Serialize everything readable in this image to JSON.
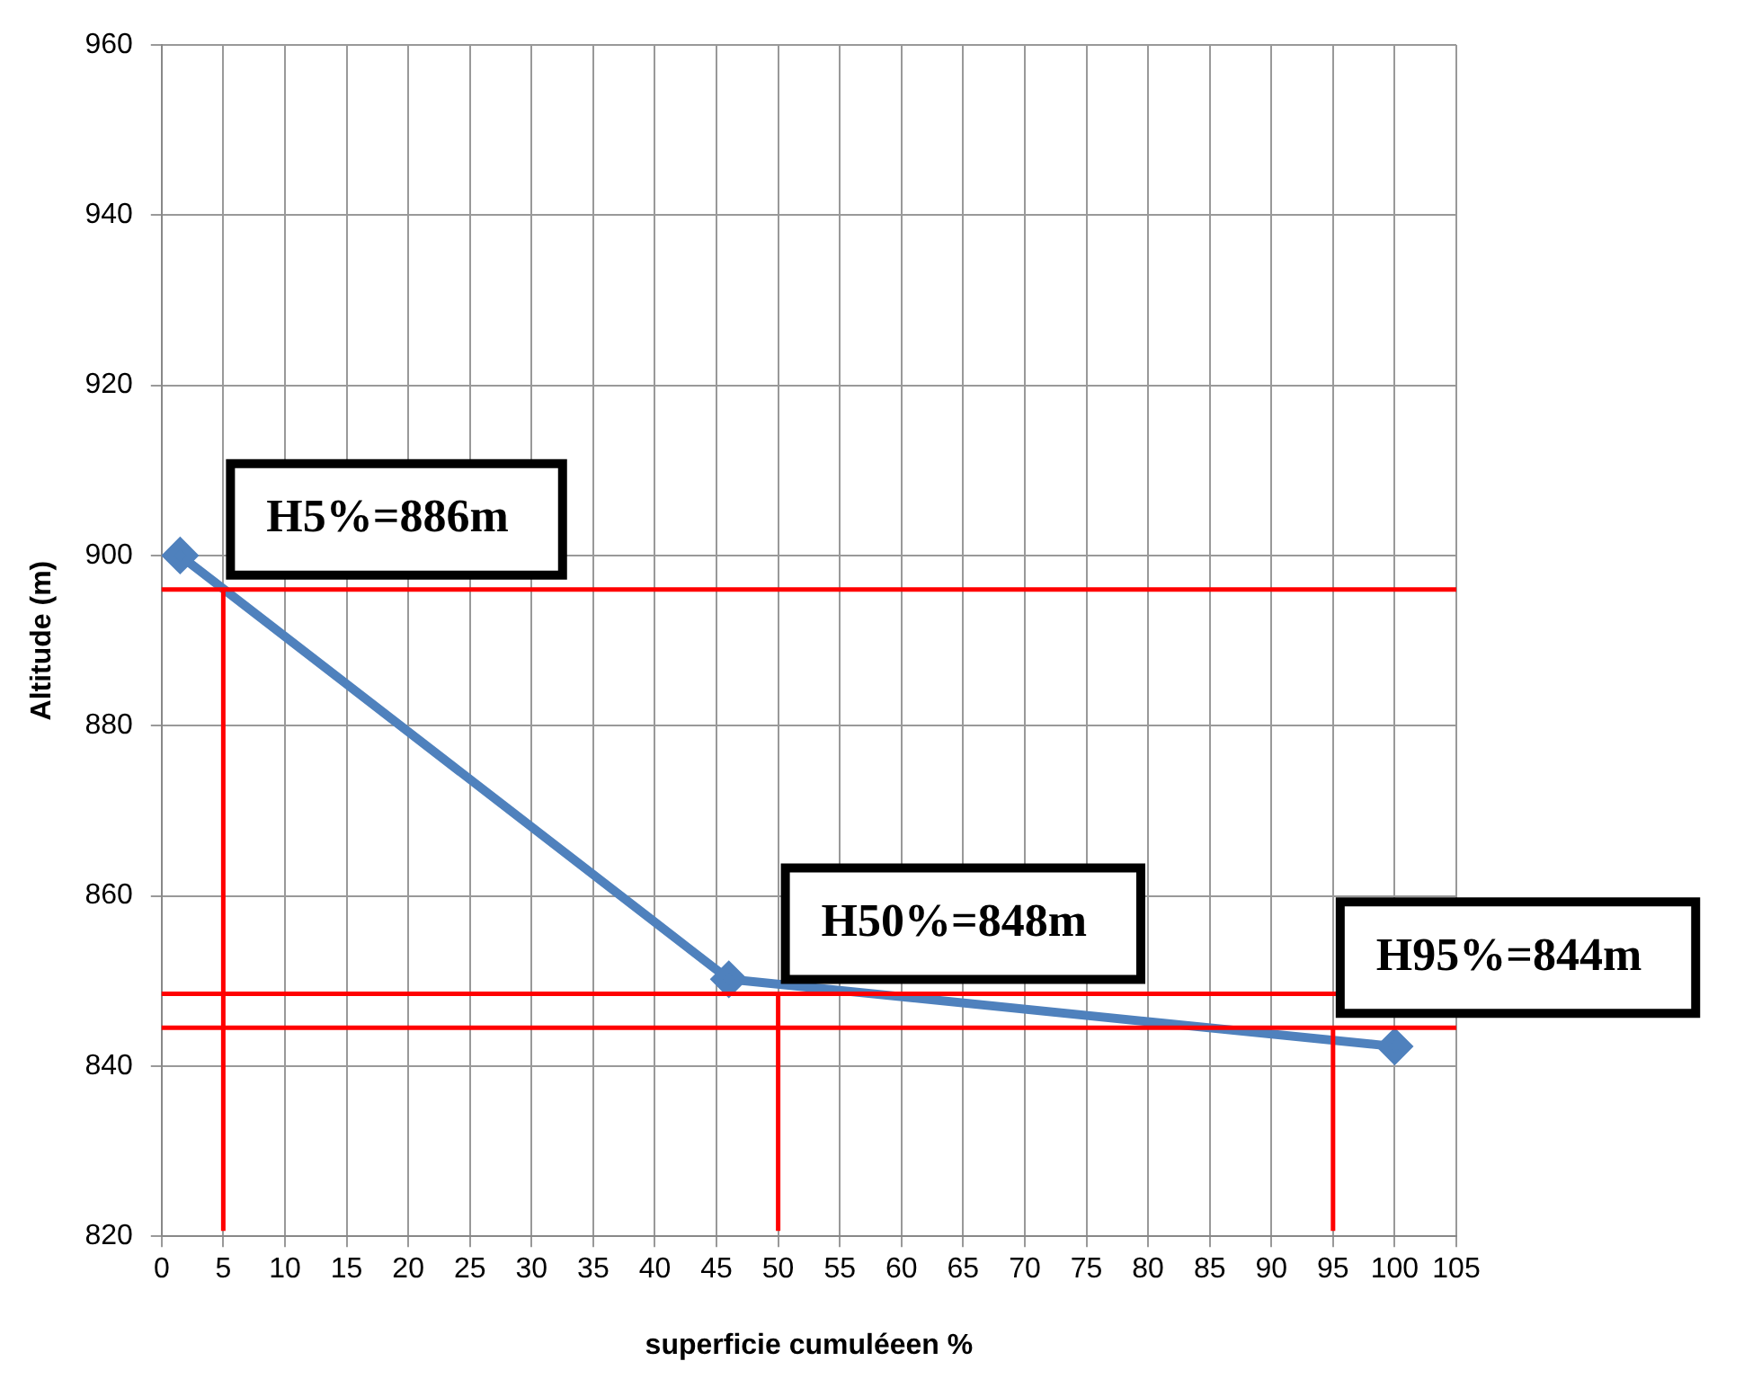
{
  "chart_data": {
    "type": "line",
    "xlabel": "superficie cumuléeen %",
    "ylabel": "Altitude (m)",
    "x": [
      1.5,
      46,
      100
    ],
    "series": [
      {
        "color": "#4f81bd",
        "values": [
          900,
          850.2,
          842.3
        ]
      }
    ],
    "xlim": [
      0,
      105
    ],
    "xticks": [
      0,
      5,
      10,
      15,
      20,
      25,
      30,
      35,
      40,
      45,
      50,
      55,
      60,
      65,
      70,
      75,
      80,
      85,
      90,
      95,
      100,
      105
    ],
    "ylim": [
      820,
      960
    ],
    "yticks": [
      820,
      840,
      860,
      880,
      900,
      920,
      940,
      960
    ],
    "grid": true,
    "marker": "diamond",
    "line_style": "solid",
    "legend": false,
    "ref_lines": [
      {
        "axis": "x",
        "value": 5,
        "color": "#ff0000"
      },
      {
        "axis": "x",
        "value": 50,
        "color": "#ff0000"
      },
      {
        "axis": "x",
        "value": 95,
        "color": "#ff0000"
      },
      {
        "axis": "y",
        "value": 896,
        "color": "#ff0000"
      },
      {
        "axis": "y",
        "value": 848.5,
        "color": "#ff0000"
      },
      {
        "axis": "y",
        "value": 844.5,
        "color": "#ff0000"
      }
    ],
    "annotations": [
      {
        "text": "H5%=886m",
        "x": 5,
        "y": 896
      },
      {
        "text": "H50%=848m",
        "x": 50,
        "y": 848.5
      },
      {
        "text": "H95%=844m",
        "x": 95,
        "y": 844.5
      }
    ]
  }
}
